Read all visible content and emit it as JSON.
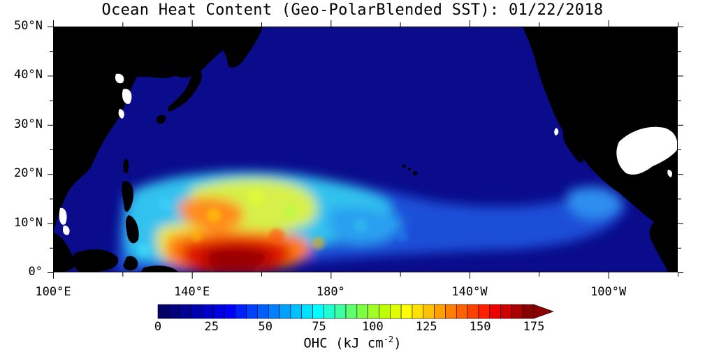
{
  "title": "Ocean Heat Content (Geo-PolarBlended SST): 01/22/2018",
  "axes": {
    "lat_labels": [
      "50°N",
      "40°N",
      "30°N",
      "20°N",
      "10°N",
      "0°"
    ],
    "lat_values": [
      50,
      40,
      30,
      20,
      10,
      0
    ],
    "lon_labels": [
      "100°E",
      "140°E",
      "180°",
      "140°W",
      "100°W"
    ],
    "lon_values": [
      100,
      140,
      180,
      220,
      260
    ],
    "lon_range_east": [
      100,
      280
    ],
    "lat_range": [
      0,
      50
    ]
  },
  "colorbar": {
    "ticks": [
      "0",
      "25",
      "50",
      "75",
      "100",
      "125",
      "150",
      "175"
    ],
    "tick_values": [
      0,
      25,
      50,
      75,
      100,
      125,
      150,
      175
    ],
    "units_main": "OHC (kJ cm",
    "units_exp": "-2",
    "units_close": ")",
    "range": [
      0,
      175
    ],
    "colors": [
      "#000066",
      "#00007e",
      "#000096",
      "#0000b0",
      "#0000c8",
      "#0000e0",
      "#0000ff",
      "#0020ff",
      "#0040ff",
      "#0060ff",
      "#0080ff",
      "#00a0ff",
      "#00c0ff",
      "#00e0ff",
      "#00ffff",
      "#20ffd0",
      "#40ffa0",
      "#60ff70",
      "#80ff40",
      "#a0ff20",
      "#c0ff00",
      "#e0ff00",
      "#ffff00",
      "#ffe000",
      "#ffc000",
      "#ffa000",
      "#ff8000",
      "#ff6000",
      "#ff4000",
      "#ff2000",
      "#ee0000",
      "#cc0000",
      "#aa0000",
      "#880000"
    ],
    "overflow_color": "#8b0000"
  },
  "colors": {
    "ocean": "#0a0c8c",
    "land": "#000000",
    "ice_nodata": "#ffffff"
  }
}
